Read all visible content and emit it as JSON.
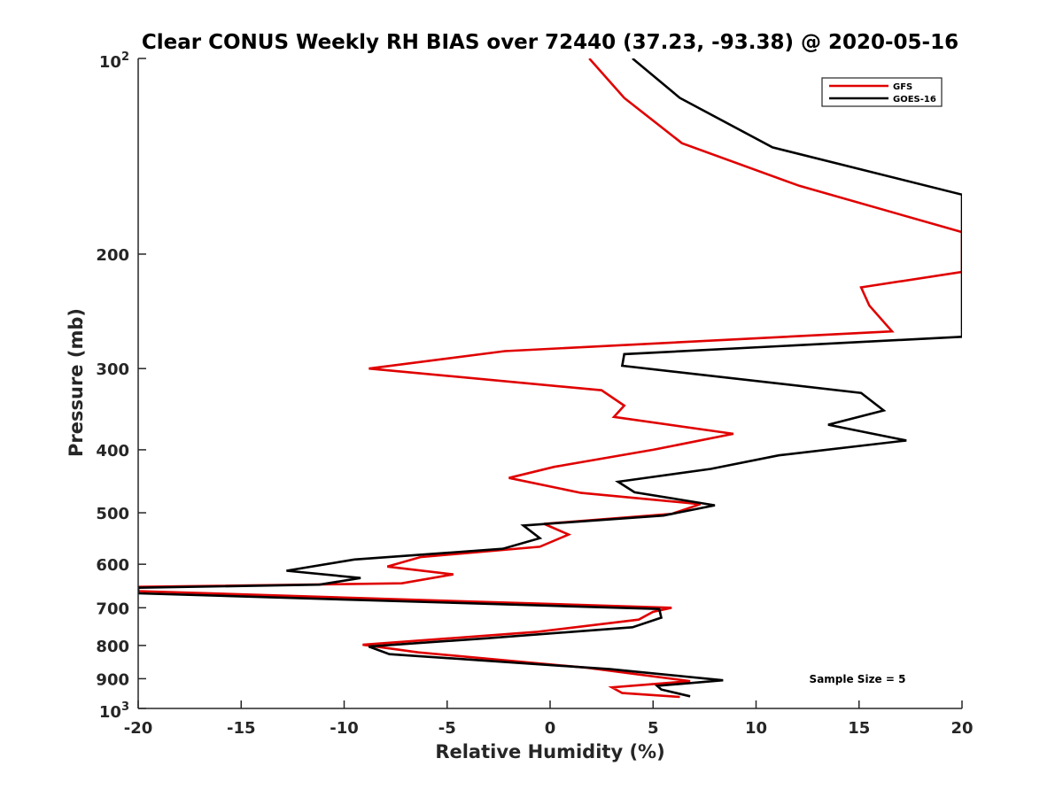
{
  "chart_data": {
    "type": "line",
    "title": "Clear CONUS Weekly RH BIAS over 72440 (37.23, -93.38) @ 2020-05-16",
    "xlabel": "Relative Humidity (%)",
    "ylabel": "Pressure (mb)",
    "xlim": [
      -20,
      20
    ],
    "ylim": [
      100,
      1000
    ],
    "y_scale": "log",
    "y_reversed": true,
    "x_ticks": [
      -20,
      -15,
      -10,
      -5,
      0,
      5,
      10,
      15,
      20
    ],
    "x_tick_labels": [
      "-20",
      "-15",
      "-10",
      "-5",
      "0",
      "5",
      "10",
      "15",
      "20"
    ],
    "y_ticks": [
      {
        "value": 100,
        "base": "10",
        "exp": "2"
      },
      {
        "value": 200,
        "label": "200"
      },
      {
        "value": 300,
        "label": "300"
      },
      {
        "value": 400,
        "label": "400"
      },
      {
        "value": 500,
        "label": "500"
      },
      {
        "value": 600,
        "label": "600"
      },
      {
        "value": 700,
        "label": "700"
      },
      {
        "value": 800,
        "label": "800"
      },
      {
        "value": 900,
        "label": "900"
      },
      {
        "value": 1000,
        "base": "10",
        "exp": "3"
      }
    ],
    "grid": false,
    "legend_position": "top-right",
    "annotation": "Sample Size = 5",
    "series": [
      {
        "name": "GFS",
        "color": "#e00000",
        "points": [
          [
            1.9,
            100
          ],
          [
            3.6,
            115
          ],
          [
            6.4,
            135
          ],
          [
            12.1,
            157
          ],
          [
            20,
            185
          ],
          [
            20,
            213
          ],
          [
            15.1,
            225
          ],
          [
            15.5,
            240
          ],
          [
            16.6,
            263
          ],
          [
            -2.2,
            282
          ],
          [
            -8.8,
            300
          ],
          [
            2.5,
            324
          ],
          [
            3.6,
            342
          ],
          [
            3.1,
            356
          ],
          [
            8.9,
            378
          ],
          [
            5.0,
            400
          ],
          [
            0.2,
            425
          ],
          [
            -2.0,
            442
          ],
          [
            1.5,
            466
          ],
          [
            7.3,
            485
          ],
          [
            5.9,
            502
          ],
          [
            -0.3,
            520
          ],
          [
            0.9,
            540
          ],
          [
            -0.5,
            564
          ],
          [
            -6.3,
            585
          ],
          [
            -7.9,
            605
          ],
          [
            -4.7,
            622
          ],
          [
            -7.2,
            642
          ],
          [
            -20,
            650
          ],
          [
            -20,
            660
          ],
          [
            5.9,
            700
          ],
          [
            5.0,
            710
          ],
          [
            4.3,
            730
          ],
          [
            -0.6,
            762
          ],
          [
            -9.1,
            798
          ],
          [
            -6.4,
            820
          ],
          [
            1.8,
            866
          ],
          [
            6.8,
            908
          ],
          [
            3.0,
            928
          ],
          [
            3.5,
            947
          ],
          [
            6.3,
            960
          ]
        ]
      },
      {
        "name": "GOES-16",
        "color": "#000000",
        "points": [
          [
            4.0,
            100
          ],
          [
            6.3,
            115
          ],
          [
            10.8,
            137
          ],
          [
            20,
            162
          ],
          [
            20,
            268
          ],
          [
            3.6,
            285
          ],
          [
            3.5,
            297
          ],
          [
            15.1,
            327
          ],
          [
            16.2,
            348
          ],
          [
            13.5,
            366
          ],
          [
            17.3,
            387
          ],
          [
            11.1,
            408
          ],
          [
            7.8,
            428
          ],
          [
            3.3,
            448
          ],
          [
            4.1,
            465
          ],
          [
            8.0,
            487
          ],
          [
            5.5,
            505
          ],
          [
            -1.3,
            523
          ],
          [
            -0.5,
            547
          ],
          [
            -2.3,
            568
          ],
          [
            -9.5,
            590
          ],
          [
            -12.8,
            614
          ],
          [
            -9.2,
            630
          ],
          [
            -11.2,
            645
          ],
          [
            -20,
            652
          ],
          [
            -20,
            665
          ],
          [
            5.3,
            703
          ],
          [
            5.4,
            725
          ],
          [
            4.0,
            750
          ],
          [
            -3.1,
            780
          ],
          [
            -8.8,
            803
          ],
          [
            -7.8,
            825
          ],
          [
            2.9,
            870
          ],
          [
            8.4,
            905
          ],
          [
            5.2,
            923
          ],
          [
            5.4,
            935
          ],
          [
            6.8,
            958
          ]
        ]
      }
    ]
  }
}
